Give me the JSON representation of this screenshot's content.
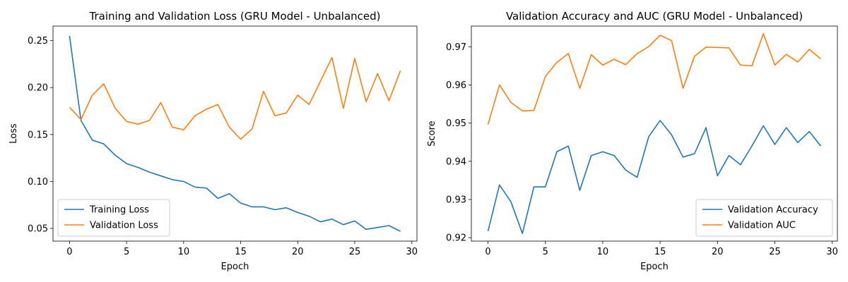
{
  "chart_data": [
    {
      "type": "line",
      "title": "Training and Validation Loss (GRU Model - Unbalanced)",
      "xlabel": "Epoch",
      "ylabel": "Loss",
      "xlim": [
        -1.45,
        30.45
      ],
      "ylim": [
        0.0365,
        0.2655
      ],
      "xticks": [
        0,
        5,
        10,
        15,
        20,
        25,
        30
      ],
      "xtick_labels": [
        "0",
        "5",
        "10",
        "15",
        "20",
        "25",
        "30"
      ],
      "yticks": [
        0.05,
        0.1,
        0.15,
        0.2,
        0.25
      ],
      "ytick_labels": [
        "0.05",
        "0.10",
        "0.15",
        "0.20",
        "0.25"
      ],
      "grid": false,
      "legend_position": "lower-left",
      "x": [
        0,
        1,
        2,
        3,
        4,
        5,
        6,
        7,
        8,
        9,
        10,
        11,
        12,
        13,
        14,
        15,
        16,
        17,
        18,
        19,
        20,
        21,
        22,
        23,
        24,
        25,
        26,
        27,
        28,
        29
      ],
      "series": [
        {
          "name": "Training Loss",
          "color": "#1f77b4",
          "values": [
            0.255,
            0.165,
            0.144,
            0.14,
            0.128,
            0.119,
            0.115,
            0.11,
            0.106,
            0.102,
            0.1,
            0.094,
            0.093,
            0.082,
            0.087,
            0.077,
            0.073,
            0.073,
            0.07,
            0.072,
            0.067,
            0.063,
            0.057,
            0.06,
            0.054,
            0.058,
            0.049,
            0.051,
            0.053,
            0.047
          ]
        },
        {
          "name": "Validation Loss",
          "color": "#ff7f0e",
          "values": [
            0.179,
            0.166,
            0.192,
            0.204,
            0.178,
            0.164,
            0.161,
            0.165,
            0.184,
            0.158,
            0.155,
            0.17,
            0.177,
            0.182,
            0.158,
            0.145,
            0.156,
            0.196,
            0.17,
            0.173,
            0.192,
            0.182,
            0.207,
            0.232,
            0.178,
            0.231,
            0.185,
            0.215,
            0.186,
            0.218
          ]
        }
      ]
    },
    {
      "type": "line",
      "title": "Validation Accuracy and AUC (GRU Model - Unbalanced)",
      "xlabel": "Epoch",
      "ylabel": "Score",
      "xlim": [
        -1.45,
        30.45
      ],
      "ylim": [
        0.9191,
        0.9754
      ],
      "xticks": [
        0,
        5,
        10,
        15,
        20,
        25,
        30
      ],
      "xtick_labels": [
        "0",
        "5",
        "10",
        "15",
        "20",
        "25",
        "30"
      ],
      "yticks": [
        0.92,
        0.93,
        0.94,
        0.95,
        0.96,
        0.97
      ],
      "ytick_labels": [
        "0.92",
        "0.93",
        "0.94",
        "0.95",
        "0.96",
        "0.97"
      ],
      "grid": false,
      "legend_position": "lower-right",
      "x": [
        0,
        1,
        2,
        3,
        4,
        5,
        6,
        7,
        8,
        9,
        10,
        11,
        12,
        13,
        14,
        15,
        16,
        17,
        18,
        19,
        20,
        21,
        22,
        23,
        24,
        25,
        26,
        27,
        28,
        29
      ],
      "series": [
        {
          "name": "Validation Accuracy",
          "color": "#1f77b4",
          "values": [
            0.9217,
            0.9338,
            0.9294,
            0.9211,
            0.9333,
            0.9333,
            0.9425,
            0.944,
            0.9324,
            0.9415,
            0.9425,
            0.9415,
            0.9377,
            0.9358,
            0.9464,
            0.9507,
            0.9469,
            0.9411,
            0.942,
            0.9488,
            0.9362,
            0.9415,
            0.9391,
            0.944,
            0.9493,
            0.9444,
            0.9488,
            0.9449,
            0.9478,
            0.944
          ]
        },
        {
          "name": "Validation AUC",
          "color": "#ff7f0e",
          "values": [
            0.9496,
            0.96,
            0.9554,
            0.9532,
            0.9533,
            0.9622,
            0.9659,
            0.9682,
            0.9591,
            0.9679,
            0.9652,
            0.9667,
            0.9653,
            0.9682,
            0.97,
            0.973,
            0.9716,
            0.9591,
            0.9675,
            0.9699,
            0.9698,
            0.9697,
            0.9652,
            0.965,
            0.9734,
            0.9652,
            0.968,
            0.966,
            0.9693,
            0.9668
          ]
        }
      ]
    }
  ]
}
